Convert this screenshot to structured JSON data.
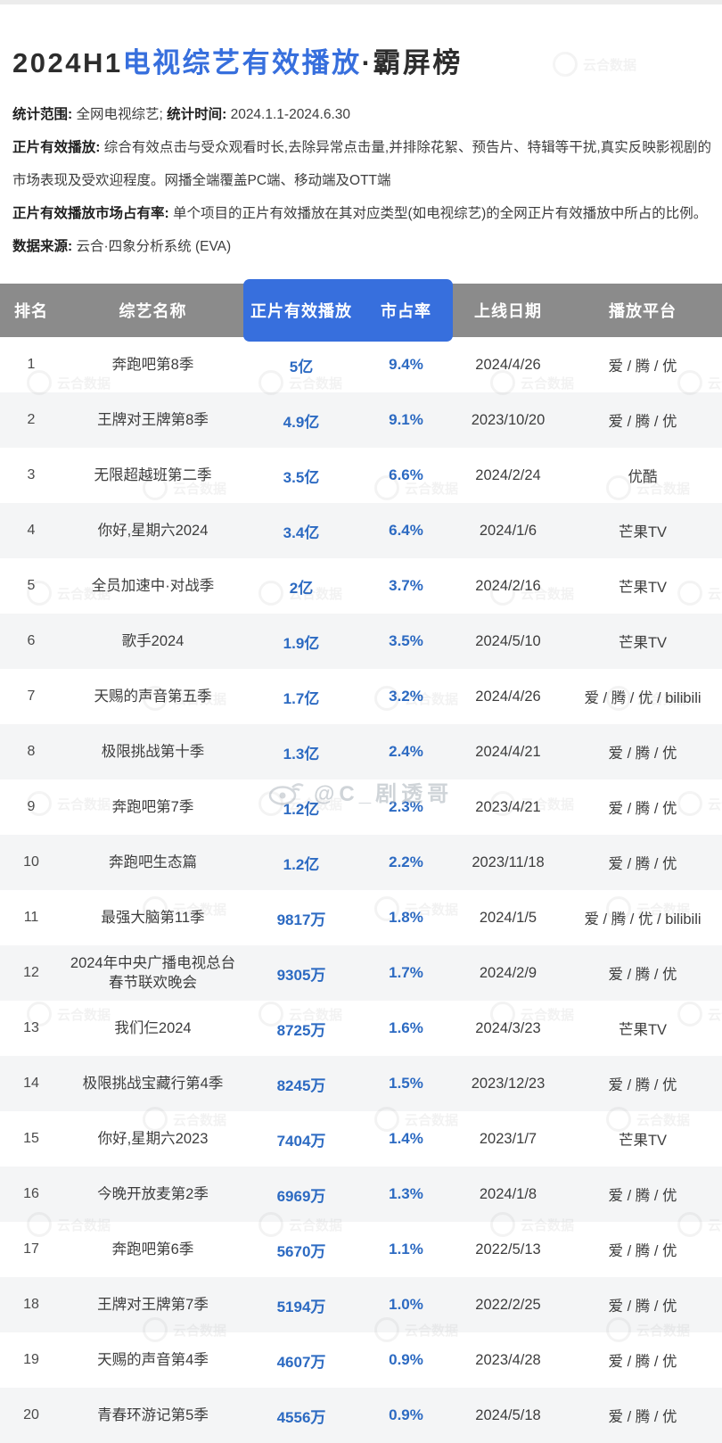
{
  "title": {
    "prefix": "2024H1",
    "highlight": "电视综艺有效播放",
    "suffix": "·霸屏榜"
  },
  "notes": [
    {
      "segments": [
        {
          "b": "统计范围:"
        },
        {
          "t": " 全网电视综艺; "
        },
        {
          "b": "统计时间:"
        },
        {
          "t": " 2024.1.1-2024.6.30"
        }
      ]
    },
    {
      "segments": [
        {
          "b": "正片有效播放:"
        },
        {
          "t": " 综合有效点击与受众观看时长,去除异常点击量,并排除花絮、预告片、特辑等干扰,真实反映影视剧的市场表现及受欢迎程度。网播全端覆盖PC端、移动端及OTT端"
        }
      ]
    },
    {
      "segments": [
        {
          "b": "正片有效播放市场占有率:"
        },
        {
          "t": " 单个项目的正片有效播放在其对应类型(如电视综艺)的全网正片有效播放中所占的比例。"
        }
      ]
    },
    {
      "segments": [
        {
          "b": "数据来源:"
        },
        {
          "t": " 云合·四象分析系统 (EVA)"
        }
      ]
    }
  ],
  "chart_data": {
    "type": "table",
    "title": "2024H1电视综艺有效播放·霸屏榜",
    "columns": [
      "排名",
      "综艺名称",
      "正片有效播放",
      "市占率",
      "上线日期",
      "播放平台"
    ],
    "highlighted_columns": [
      "正片有效播放",
      "市占率"
    ],
    "rows": [
      [
        "1",
        "奔跑吧第8季",
        "5亿",
        "9.4%",
        "2024/4/26",
        "爱 / 腾 / 优"
      ],
      [
        "2",
        "王牌对王牌第8季",
        "4.9亿",
        "9.1%",
        "2023/10/20",
        "爱 / 腾 / 优"
      ],
      [
        "3",
        "无限超越班第二季",
        "3.5亿",
        "6.6%",
        "2024/2/24",
        "优酷"
      ],
      [
        "4",
        "你好,星期六2024",
        "3.4亿",
        "6.4%",
        "2024/1/6",
        "芒果TV"
      ],
      [
        "5",
        "全员加速中·对战季",
        "2亿",
        "3.7%",
        "2024/2/16",
        "芒果TV"
      ],
      [
        "6",
        "歌手2024",
        "1.9亿",
        "3.5%",
        "2024/5/10",
        "芒果TV"
      ],
      [
        "7",
        "天赐的声音第五季",
        "1.7亿",
        "3.2%",
        "2024/4/26",
        "爱 / 腾 / 优 / bilibili"
      ],
      [
        "8",
        "极限挑战第十季",
        "1.3亿",
        "2.4%",
        "2024/4/21",
        "爱 / 腾 / 优"
      ],
      [
        "9",
        "奔跑吧第7季",
        "1.2亿",
        "2.3%",
        "2023/4/21",
        "爱 / 腾 / 优"
      ],
      [
        "10",
        "奔跑吧生态篇",
        "1.2亿",
        "2.2%",
        "2023/11/18",
        "爱 / 腾 / 优"
      ],
      [
        "11",
        "最强大脑第11季",
        "9817万",
        "1.8%",
        "2024/1/5",
        "爱 / 腾 / 优 / bilibili"
      ],
      [
        "12",
        "2024年中央广播电视总台春节联欢晚会",
        "9305万",
        "1.7%",
        "2024/2/9",
        "爱 / 腾 / 优"
      ],
      [
        "13",
        "我们仨2024",
        "8725万",
        "1.6%",
        "2024/3/23",
        "芒果TV"
      ],
      [
        "14",
        "极限挑战宝藏行第4季",
        "8245万",
        "1.5%",
        "2023/12/23",
        "爱 / 腾 / 优"
      ],
      [
        "15",
        "你好,星期六2023",
        "7404万",
        "1.4%",
        "2023/1/7",
        "芒果TV"
      ],
      [
        "16",
        "今晚开放麦第2季",
        "6969万",
        "1.3%",
        "2024/1/8",
        "爱 / 腾 / 优"
      ],
      [
        "17",
        "奔跑吧第6季",
        "5670万",
        "1.1%",
        "2022/5/13",
        "爱 / 腾 / 优"
      ],
      [
        "18",
        "王牌对王牌第7季",
        "5194万",
        "1.0%",
        "2022/2/25",
        "爱 / 腾 / 优"
      ],
      [
        "19",
        "天赐的声音第4季",
        "4607万",
        "0.9%",
        "2023/4/28",
        "爱 / 腾 / 优"
      ],
      [
        "20",
        "青春环游记第5季",
        "4556万",
        "0.9%",
        "2024/5/18",
        "爱 / 腾 / 优"
      ]
    ]
  },
  "watermarks": {
    "weibo": "@C_剧透哥",
    "tile": "云合数据"
  },
  "colors": {
    "accent_blue": "#376fdd",
    "text_blue": "#2c6ac2",
    "header_gray": "#8b8b8b",
    "row_alt": "#f4f5f6"
  }
}
